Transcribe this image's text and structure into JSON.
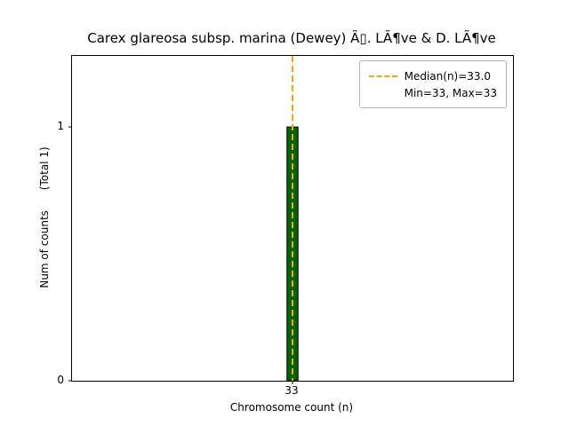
{
  "chart_data": {
    "type": "bar",
    "title": "Carex glareosa subsp. marina (Dewey) Ã▯. LÃ¶ve & D. LÃ¶ve",
    "xlabel": "Chromosome count (n)",
    "ylabel": "Num of counts      (Total 1)",
    "categories": [
      33
    ],
    "values": [
      1
    ],
    "total": 1,
    "bar_color": "#006400",
    "bar_edge_color": "#000000",
    "bar_width_units": 0.03,
    "xlim": [
      32.4,
      33.6
    ],
    "ylim": [
      0,
      1.28
    ],
    "xticks": [
      "33"
    ],
    "yticks": [
      "0",
      "1"
    ],
    "grid": false,
    "median": 33.0,
    "min": 33,
    "max": 33,
    "median_line_color": "#FFA500",
    "legend": {
      "position": "upper right",
      "entries": [
        "Median(n)=33.0",
        "Min=33, Max=33"
      ]
    }
  }
}
